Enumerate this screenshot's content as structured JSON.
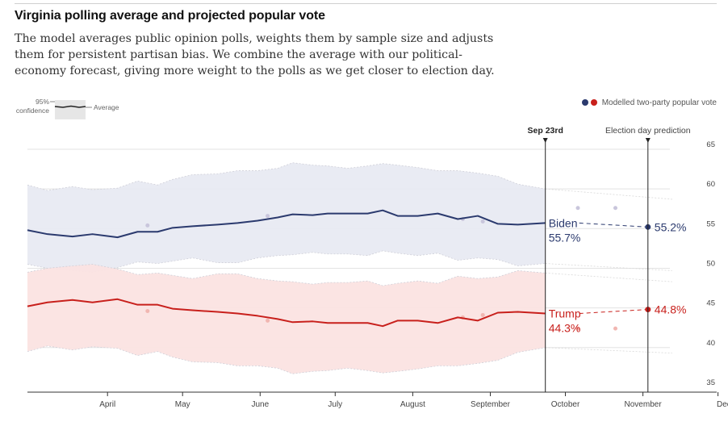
{
  "header": {
    "title": "Virginia polling average and projected popular vote",
    "subtitle": "The model averages public opinion polls, weights them by sample size and adjusts them for persistent partisan bias. We combine the average with our political-economy forecast, giving more weight to the polls as we get closer to election day."
  },
  "legend": {
    "confidence_label": "95% confidence",
    "average_label": "Average",
    "modelled_label": "Modelled two-party popular vote"
  },
  "markers": {
    "today_label": "Sep 23rd",
    "election_label": "Election day prediction"
  },
  "colors": {
    "biden": "#2b3a6e",
    "trump": "#c8201c",
    "biden_band": "#e8eaf2",
    "trump_band": "#fbe3e1"
  },
  "chart_data": {
    "type": "line",
    "ylim": [
      35,
      65
    ],
    "y_ticks": [
      35,
      40,
      45,
      50,
      55,
      60,
      65
    ],
    "x_ticks": [
      {
        "label": "April",
        "day": 32
      },
      {
        "label": "May",
        "day": 62
      },
      {
        "label": "June",
        "day": 93
      },
      {
        "label": "July",
        "day": 123
      },
      {
        "label": "August",
        "day": 154
      },
      {
        "label": "September",
        "day": 185
      },
      {
        "label": "October",
        "day": 215
      },
      {
        "label": "November",
        "day": 246
      },
      {
        "label": "December",
        "day": 276
      }
    ],
    "x_note": "day = days since March 1st",
    "today_day": 207,
    "election_day": 248,
    "series": [
      {
        "name": "Biden",
        "label_name": "Biden",
        "label_value": "55.7%",
        "prediction_label": "55.2%",
        "prediction": 55.2,
        "days": [
          0,
          8,
          18,
          26,
          36,
          44,
          52,
          58,
          66,
          76,
          84,
          92,
          100,
          106,
          114,
          120,
          128,
          136,
          142,
          148,
          156,
          164,
          172,
          180,
          188,
          196,
          207
        ],
        "values": [
          54.8,
          54.3,
          54.0,
          54.3,
          53.9,
          54.6,
          54.6,
          55.1,
          55.3,
          55.5,
          55.7,
          56.0,
          56.4,
          56.8,
          56.7,
          56.9,
          56.9,
          56.9,
          57.3,
          56.6,
          56.6,
          56.9,
          56.2,
          56.6,
          55.6,
          55.5,
          55.7
        ],
        "upper": [
          60.5,
          59.8,
          60.3,
          59.9,
          60.1,
          61.0,
          60.5,
          61.2,
          61.8,
          61.9,
          62.3,
          62.3,
          62.6,
          63.3,
          63.0,
          62.9,
          62.6,
          62.9,
          63.2,
          63.0,
          62.7,
          62.3,
          62.3,
          62.0,
          61.6,
          60.6,
          60.0
        ],
        "lower": [
          50.5,
          50.0,
          49.7,
          49.5,
          50.1,
          50.8,
          50.6,
          50.9,
          51.3,
          50.7,
          50.7,
          51.3,
          51.6,
          51.7,
          52.0,
          51.8,
          51.8,
          51.6,
          52.2,
          51.9,
          51.6,
          51.9,
          51.0,
          51.3,
          51.1,
          50.3,
          50.6
        ],
        "polls": [
          {
            "day": 48,
            "value": 55.4
          },
          {
            "day": 96,
            "value": 56.6
          },
          {
            "day": 174,
            "value": 56.2
          },
          {
            "day": 182,
            "value": 55.9
          },
          {
            "day": 220,
            "value": 57.6
          },
          {
            "day": 235,
            "value": 57.6
          }
        ]
      },
      {
        "name": "Trump",
        "label_name": "Trump",
        "label_value": "44.3%",
        "prediction_label": "44.8%",
        "prediction": 44.8,
        "days": [
          0,
          8,
          18,
          26,
          36,
          44,
          52,
          58,
          66,
          76,
          84,
          92,
          100,
          106,
          114,
          120,
          128,
          136,
          142,
          148,
          156,
          164,
          172,
          180,
          188,
          196,
          207
        ],
        "values": [
          45.2,
          45.7,
          46.0,
          45.7,
          46.1,
          45.4,
          45.4,
          44.9,
          44.7,
          44.5,
          44.3,
          44.0,
          43.6,
          43.2,
          43.3,
          43.1,
          43.1,
          43.1,
          42.7,
          43.4,
          43.4,
          43.1,
          43.8,
          43.4,
          44.4,
          44.5,
          44.3
        ],
        "upper": [
          49.5,
          50.0,
          50.3,
          50.5,
          49.9,
          49.2,
          49.4,
          49.1,
          48.7,
          49.3,
          49.3,
          48.7,
          48.4,
          48.3,
          48.0,
          48.2,
          48.2,
          48.4,
          47.8,
          48.1,
          48.4,
          48.1,
          49.0,
          48.7,
          48.9,
          49.7,
          49.4
        ],
        "lower": [
          39.5,
          40.2,
          39.7,
          40.1,
          39.9,
          39.0,
          39.5,
          38.8,
          38.2,
          38.1,
          37.7,
          37.7,
          37.4,
          36.7,
          37.0,
          37.1,
          37.4,
          37.1,
          36.8,
          37.0,
          37.3,
          37.7,
          37.7,
          38.0,
          38.4,
          39.4,
          40.0
        ],
        "polls": [
          {
            "day": 48,
            "value": 44.6
          },
          {
            "day": 96,
            "value": 43.4
          },
          {
            "day": 174,
            "value": 43.8
          },
          {
            "day": 182,
            "value": 44.1
          },
          {
            "day": 220,
            "value": 42.4
          },
          {
            "day": 235,
            "value": 42.4
          }
        ]
      }
    ]
  }
}
